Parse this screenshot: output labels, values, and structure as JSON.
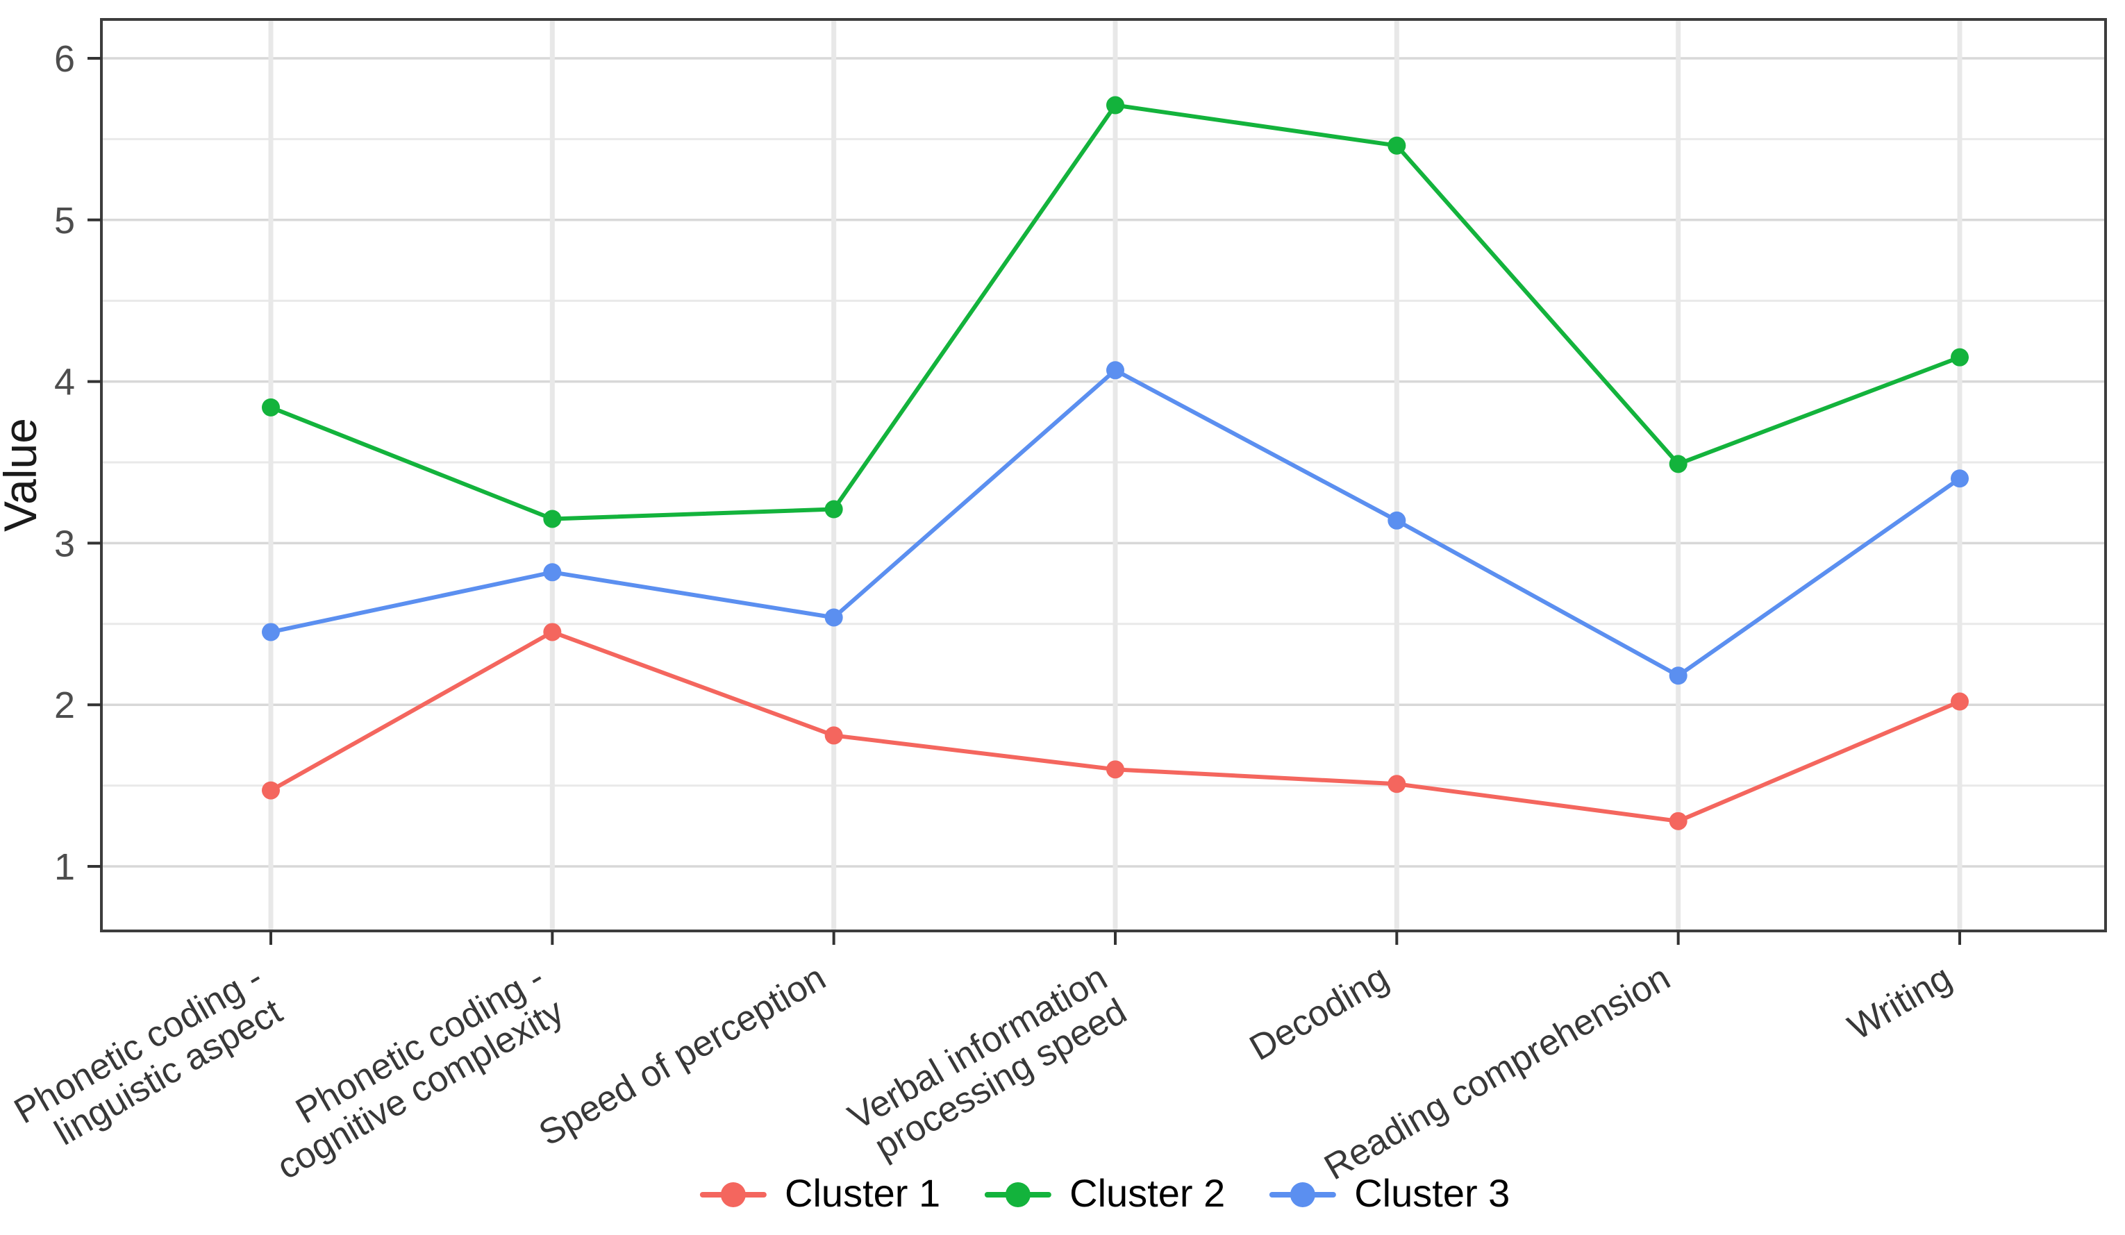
{
  "chart_data": {
    "type": "line",
    "title": "",
    "xlabel": "",
    "ylabel": "Value",
    "categories": [
      "Phonetic coding -\nlinguistic aspect",
      "Phonetic coding -\ncognitive complexity",
      "Speed of perception",
      "Verbal information\nprocessing speed",
      "Decoding",
      "Reading comprehension",
      "Writing"
    ],
    "yticks": [
      1,
      2,
      3,
      4,
      5,
      6
    ],
    "ylim": [
      0.75,
      6.25
    ],
    "grid": "major and minor horizontal, major vertical",
    "legend_position": "bottom-center",
    "x_label_rotation_deg": 30,
    "series": [
      {
        "name": "Cluster 1",
        "color": "#F4665E",
        "values": [
          1.47,
          2.45,
          1.81,
          1.6,
          1.51,
          1.28,
          2.02
        ]
      },
      {
        "name": "Cluster 2",
        "color": "#13B33C",
        "values": [
          3.84,
          3.15,
          3.21,
          5.71,
          5.46,
          3.49,
          4.15
        ]
      },
      {
        "name": "Cluster 3",
        "color": "#5B8FF0",
        "values": [
          2.45,
          2.82,
          2.54,
          4.07,
          3.14,
          2.18,
          3.4
        ]
      }
    ],
    "style": {
      "panel_border_color": "#3d3d3d",
      "grid_major_color": "#d8d8d8",
      "grid_minor_color": "#e9e9e9",
      "grid_vertical_color": "#e8e8e8",
      "tick_mark_color": "#333333",
      "axis_text_color": "#4d4d4d",
      "background": "#ffffff"
    }
  }
}
